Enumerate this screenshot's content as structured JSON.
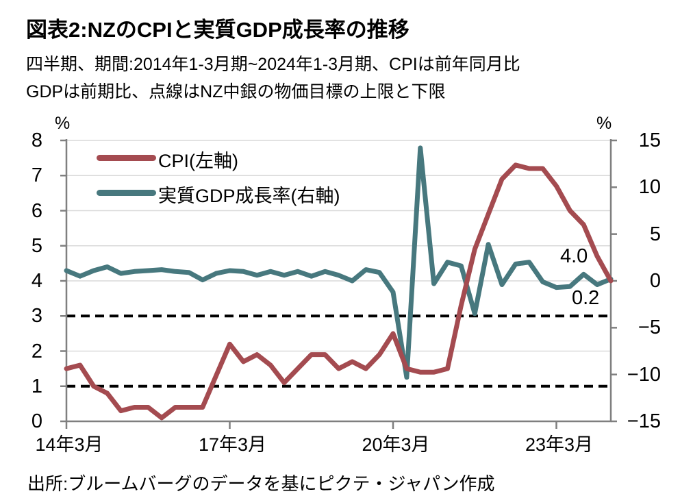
{
  "header": {
    "title": "図表2:NZのCPIと実質GDP成長率の推移",
    "subtitle_line1": "四半期、期間:2014年1-3月期~2024年1-3月期、CPIは前年同月比",
    "subtitle_line2": "GDPは前期比、点線はNZ中銀の物価目標の上限と下限"
  },
  "legend": {
    "cpi_label": "CPI(左軸)",
    "gdp_label": "実質GDP成長率(右軸)"
  },
  "annotations": {
    "cpi_last_value": "4.0",
    "gdp_last_value": "0.2"
  },
  "source": "出所:ブルームバーグのデータを基にピクテ・ジャパン作成",
  "colors": {
    "cpi": "#A44B50",
    "gdp": "#47787E",
    "gridline": "#D9D9D9",
    "axis": "#7F7F7F",
    "dashed": "#000000"
  },
  "chart_data": {
    "type": "line",
    "title": "図表2:NZのCPIと実質GDP成長率の推移",
    "x_frequency": "quarterly",
    "x_start": "2014Q1",
    "x_end": "2024Q1",
    "left_axis": {
      "unit": "%",
      "min": 0,
      "max": 8,
      "tick_labels": [
        "8",
        "7",
        "6",
        "5",
        "4",
        "3",
        "2",
        "1",
        "0"
      ]
    },
    "right_axis": {
      "unit": "%",
      "min": -15,
      "max": 15,
      "tick_labels": [
        "15",
        "10",
        "5",
        "0",
        "−5",
        "−10",
        "−15"
      ]
    },
    "x_tick_labels": [
      "14年3月",
      "17年3月",
      "20年3月",
      "23年3月"
    ],
    "x_tick_quarter_indices": [
      0,
      12,
      24,
      36
    ],
    "dashed_reference_lines_left_axis": [
      1,
      3
    ],
    "grid": "horizontal",
    "legend_position": "top-left-inside",
    "series": [
      {
        "name": "CPI(左軸)",
        "axis": "left",
        "color_key": "cpi",
        "values": [
          1.5,
          1.6,
          1.0,
          0.8,
          0.3,
          0.4,
          0.4,
          0.1,
          0.4,
          0.4,
          0.4,
          1.3,
          2.2,
          1.7,
          1.9,
          1.6,
          1.1,
          1.5,
          1.9,
          1.9,
          1.5,
          1.7,
          1.5,
          1.9,
          2.5,
          1.5,
          1.4,
          1.4,
          1.5,
          3.3,
          4.9,
          5.9,
          6.9,
          7.3,
          7.2,
          7.2,
          6.7,
          6.0,
          5.6,
          4.7,
          4.0
        ]
      },
      {
        "name": "実質GDP成長率(右軸)",
        "axis": "right",
        "color_key": "gdp",
        "values": [
          1.1,
          0.5,
          1.1,
          1.5,
          0.8,
          1.0,
          1.1,
          1.2,
          1.0,
          0.9,
          0.1,
          0.8,
          1.1,
          1.0,
          0.6,
          1.0,
          0.6,
          1.0,
          0.5,
          1.0,
          0.6,
          0.0,
          1.2,
          0.9,
          -1.2,
          -10.3,
          14.2,
          -0.3,
          2.0,
          1.6,
          -3.5,
          3.9,
          -0.4,
          1.8,
          2.0,
          -0.1,
          -0.7,
          -0.6,
          0.7,
          -0.4,
          0.2
        ]
      }
    ]
  }
}
